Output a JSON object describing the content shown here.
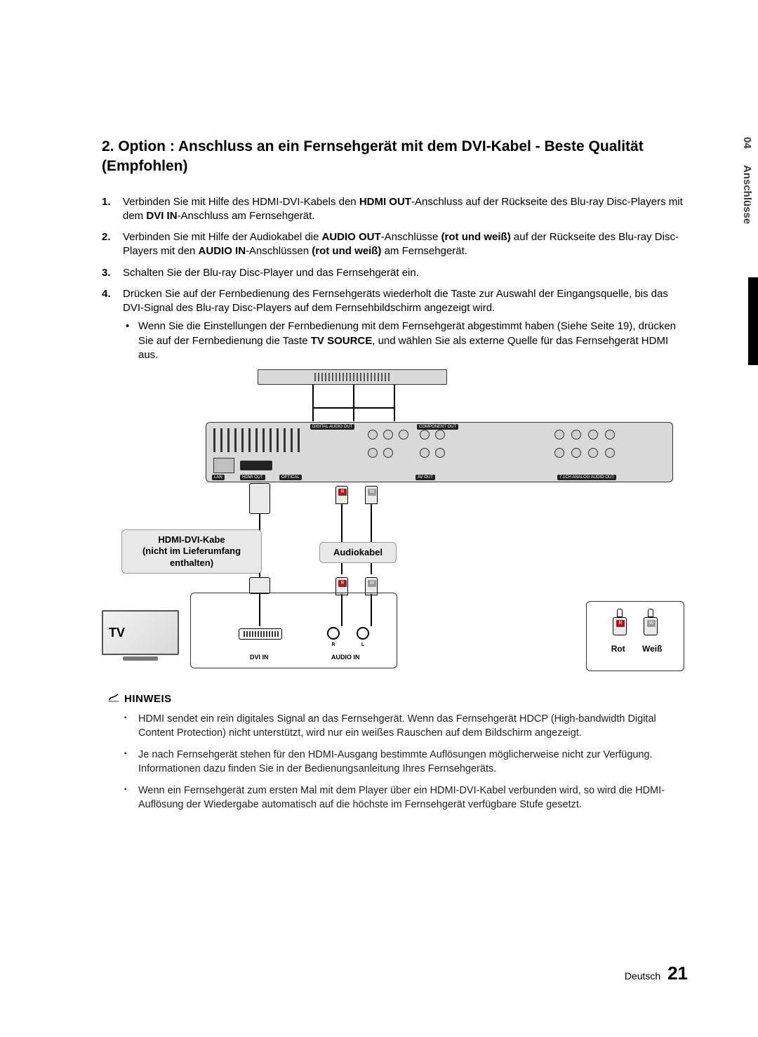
{
  "side": {
    "chapter_num": "04",
    "chapter_label": "Anschlüsse"
  },
  "heading": "2. Option : Anschluss an ein Fernsehgerät mit dem DVI-Kabel - Beste Qualität (Empfohlen)",
  "steps": [
    {
      "num": "1.",
      "parts": [
        "Verbinden Sie mit Hilfe des HDMI-DVI-Kabels den ",
        {
          "b": "HDMI OUT"
        },
        "-Anschluss auf der Rückseite des Blu-ray Disc-Players mit dem ",
        {
          "b": "DVI IN"
        },
        "-Anschluss am Fernsehgerät."
      ]
    },
    {
      "num": "2.",
      "parts": [
        "Verbinden Sie mit Hilfe der Audiokabel die ",
        {
          "b": "AUDIO OUT"
        },
        "-Anschlüsse ",
        {
          "b": "(rot und weiß)"
        },
        " auf der Rückseite des Blu-ray Disc-Players mit den ",
        {
          "b": "AUDIO IN"
        },
        "-Anschlüssen ",
        {
          "b": "(rot und weiß)"
        },
        " am Fernsehgerät."
      ]
    },
    {
      "num": "3.",
      "parts": [
        "Schalten Sie der Blu-ray Disc-Player und das Fernsehgerät ein."
      ]
    },
    {
      "num": "4.",
      "parts": [
        "Drücken Sie auf der Fernbedienung des Fernsehgeräts wiederholt die Taste zur Auswahl der Eingangsquelle, bis das DVI-Signal des Blu-ray Disc-Players auf dem Fernsehbildschirm angezeigt wird."
      ],
      "sub": [
        "Wenn Sie die Einstellungen der Fernbedienung mit dem Fernsehgerät abgestimmt haben (Siehe Seite 19), drücken Sie auf der Fernbedienung die Taste ",
        {
          "b": "TV SOURCE"
        },
        ", und wählen Sie als externe Quelle für das Fernsehgerät HDMI aus."
      ]
    }
  ],
  "diagram": {
    "label_hdmi_dvi_line1": "HDMI-DVI-Kabe",
    "label_hdmi_dvi_line2": "(nicht im Lieferumfang",
    "label_hdmi_dvi_line3": "enthalten)",
    "label_audiokabel": "Audiokabel",
    "tv_label": "TV",
    "dvi_in": "DVI IN",
    "audio_in": "AUDIO IN",
    "r_tag": "R",
    "w_tag": "W",
    "r_circle": "R",
    "l_circle": "L",
    "legend_rot": "Rot",
    "legend_weiss": "Weiß",
    "panel_labels": {
      "lan": "LAN",
      "hdmi_out": "HDMI OUT",
      "optical": "OPTICAL",
      "av_out": "AV OUT",
      "digital_audio": "DIGITAL AUDIO OUT",
      "component": "COMPONENT OUT",
      "analog": "7.1CH ANALOG AUDIO OUT"
    }
  },
  "hinweis_label": "HINWEIS",
  "notes": [
    "HDMI sendet ein rein digitales Signal an das Fernsehgerät. Wenn das Fernsehgerät HDCP (High-bandwidth Digital Content Protection) nicht unterstützt, wird nur ein weißes Rauschen auf dem Bildschirm angezeigt.",
    "Je nach Fernsehgerät stehen für den HDMI-Ausgang bestimmte Auflösungen möglicherweise nicht zur Verfügung. Informationen dazu finden Sie in der Bedienungsanleitung Ihres Fernsehgeräts.",
    "Wenn ein Fernsehgerät zum ersten Mal mit dem Player über ein HDMI-DVI-Kabel verbunden wird, so wird die HDMI-Auflösung der Wiedergabe automatisch auf die höchste im Fernsehgerät verfügbare Stufe gesetzt."
  ],
  "footer": {
    "lang": "Deutsch",
    "page": "21"
  },
  "colors": {
    "red": "#b01818",
    "white_tag": "#9a9a9a",
    "panel": "#d9d9d9",
    "text": "#000000"
  }
}
